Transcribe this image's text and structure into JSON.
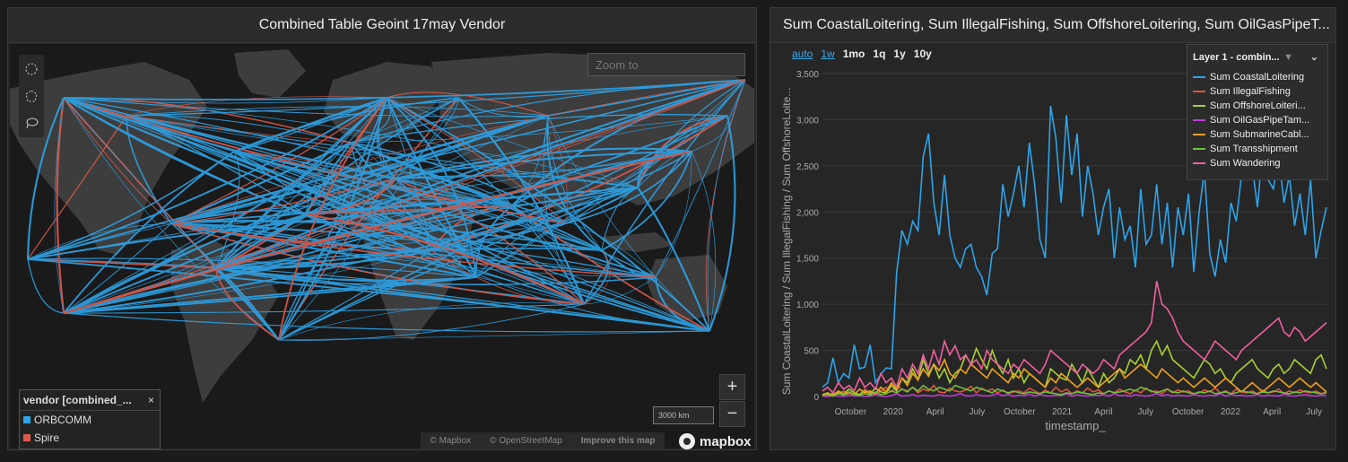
{
  "map_panel": {
    "title": "Combined Table Geoint 17may Vendor",
    "zoom_placeholder": "Zoom to",
    "legend": {
      "title": "vendor [combined_...",
      "close": "×",
      "items": [
        {
          "label": "ORBCOMM",
          "color": "#2ea4e8"
        },
        {
          "label": "Spire",
          "color": "#e05a4b"
        }
      ]
    },
    "scale_label": "3000 km",
    "zoom_in": "+",
    "zoom_out": "−",
    "attribution": [
      "© Mapbox",
      "© OpenStreetMap",
      "Improve this map"
    ],
    "logo": "mapbox",
    "tools": [
      "circle-select-icon",
      "polygon-select-icon",
      "lasso-select-icon"
    ]
  },
  "chart_panel": {
    "title": "Sum CoastalLoitering, Sum IllegalFishing, Sum OffshoreLoitering, Sum OilGasPipeT...",
    "range_buttons": [
      {
        "label": "auto",
        "active": true
      },
      {
        "label": "1w",
        "active": true
      },
      {
        "label": "1mo",
        "active": false
      },
      {
        "label": "1q",
        "active": false
      },
      {
        "label": "1y",
        "active": false
      },
      {
        "label": "10y",
        "active": false
      }
    ],
    "legend_title": "Layer 1 - combin...",
    "series_labels": [
      "Sum CoastalLoitering",
      "Sum IllegalFishing",
      "Sum OffshoreLoiteri...",
      "Sum OilGasPipeTam...",
      "Sum SubmarineCabl...",
      "Sum Transshipment",
      "Sum Wandering"
    ]
  },
  "chart_data": {
    "type": "line",
    "xlabel": "timestamp_",
    "ylabel": "Sum CoastalLoitering / Sum IllegalFishing / Sum OffshoreLoite...",
    "ylim": [
      0,
      3500
    ],
    "yticks": [
      "0",
      "500",
      "1,000",
      "1,500",
      "2,000",
      "2,500",
      "3,000",
      "3,500"
    ],
    "x_start": "2019-08",
    "x_end": "2022-07",
    "xticks": [
      {
        "label": "October",
        "date": "2019-10-01"
      },
      {
        "label": "2020",
        "date": "2020-01-01"
      },
      {
        "label": "April",
        "date": "2020-04-01"
      },
      {
        "label": "July",
        "date": "2020-07-01"
      },
      {
        "label": "October",
        "date": "2020-10-01"
      },
      {
        "label": "2021",
        "date": "2021-01-01"
      },
      {
        "label": "April",
        "date": "2021-04-01"
      },
      {
        "label": "July",
        "date": "2021-07-01"
      },
      {
        "label": "October",
        "date": "2021-10-01"
      },
      {
        "label": "2022",
        "date": "2022-01-01"
      },
      {
        "label": "April",
        "date": "2022-04-01"
      },
      {
        "label": "July",
        "date": "2022-07-01"
      }
    ],
    "grid": true,
    "legend_position": "top-right",
    "series": [
      {
        "name": "Sum CoastalLoitering",
        "color": "#2ea4e8",
        "values": [
          100,
          150,
          420,
          150,
          250,
          200,
          560,
          300,
          320,
          560,
          150,
          240,
          310,
          300,
          1350,
          1800,
          1650,
          1900,
          1800,
          2600,
          2850,
          2100,
          1750,
          2400,
          1750,
          1500,
          1400,
          1600,
          1650,
          1400,
          1300,
          1100,
          1550,
          1600,
          2300,
          1950,
          2200,
          2500,
          2050,
          2750,
          2300,
          1700,
          1500,
          3150,
          2800,
          2100,
          3050,
          2400,
          2850,
          1950,
          2500,
          2200,
          1750,
          2050,
          2250,
          1500,
          2050,
          1700,
          1850,
          1400,
          2250,
          1650,
          1750,
          2300,
          1650,
          2100,
          1400,
          2050,
          1750,
          2200,
          1350,
          2000,
          2450,
          1550,
          1300,
          1700,
          1450,
          2100,
          1900,
          2400,
          2600,
          2500,
          2050,
          2700,
          2350,
          2250,
          2600,
          2100,
          2400,
          1850,
          2200,
          1750,
          2350,
          1500,
          1800,
          2050
        ]
      },
      {
        "name": "Sum IllegalFishing",
        "color": "#e0553b",
        "values": [
          20,
          10,
          40,
          25,
          60,
          15,
          30,
          20,
          80,
          40,
          20,
          60,
          100,
          50,
          120,
          80,
          60,
          100,
          40,
          80,
          60,
          120,
          50,
          40,
          90,
          60,
          50,
          70,
          110,
          40,
          90,
          60,
          80,
          40,
          70,
          30,
          50,
          60,
          40,
          90,
          60,
          30,
          70,
          40,
          100,
          50,
          80,
          30,
          60,
          40,
          90,
          50,
          70,
          30,
          60,
          40,
          80,
          50,
          30,
          70,
          40,
          90,
          50,
          60,
          30,
          80,
          40,
          70,
          50,
          60,
          30,
          40,
          70,
          50,
          90,
          40,
          60,
          30,
          80,
          50,
          40,
          60,
          30,
          70,
          40,
          50,
          80,
          30,
          60,
          40,
          70,
          50,
          40,
          60,
          30,
          50
        ]
      },
      {
        "name": "Sum OffshoreLoitering",
        "color": "#a7d133",
        "values": [
          10,
          30,
          20,
          50,
          30,
          80,
          40,
          20,
          60,
          30,
          90,
          50,
          40,
          120,
          60,
          200,
          150,
          300,
          180,
          400,
          250,
          350,
          200,
          300,
          150,
          250,
          300,
          450,
          350,
          520,
          400,
          300,
          500,
          350,
          250,
          400,
          200,
          300,
          150,
          250,
          200,
          150,
          100,
          300,
          250,
          200,
          180,
          350,
          250,
          150,
          300,
          200,
          100,
          250,
          150,
          200,
          300,
          250,
          400,
          350,
          450,
          300,
          500,
          600,
          450,
          550,
          400,
          350,
          300,
          250,
          200,
          300,
          400,
          350,
          250,
          300,
          200,
          150,
          250,
          300,
          350,
          400,
          300,
          250,
          200,
          300,
          350,
          250,
          300,
          400,
          350,
          300,
          250,
          400,
          450,
          300
        ]
      },
      {
        "name": "Sum OilGasPipeTampering",
        "color": "#c03ad8",
        "values": [
          5,
          0,
          10,
          5,
          0,
          15,
          5,
          10,
          0,
          5,
          20,
          5,
          0,
          10,
          30,
          5,
          10,
          20,
          5,
          15,
          10,
          5,
          20,
          10,
          5,
          15,
          30,
          10,
          5,
          20,
          10,
          5,
          15,
          30,
          10,
          20,
          5,
          15,
          10,
          25,
          5,
          20,
          10,
          5,
          15,
          10,
          30,
          5,
          20,
          10,
          5,
          15,
          10,
          20,
          5,
          30,
          10,
          15,
          5,
          20,
          10,
          5,
          15,
          30,
          10,
          20,
          5,
          15,
          10,
          5,
          20,
          10,
          5,
          15,
          10,
          30,
          5,
          20,
          10,
          15,
          5,
          10,
          20,
          5,
          15,
          10,
          5,
          25,
          10,
          5,
          15,
          20,
          10,
          5,
          15,
          10
        ]
      },
      {
        "name": "Sum SubmarineCableTampering",
        "color": "#f0a21d",
        "values": [
          20,
          40,
          10,
          60,
          30,
          50,
          20,
          80,
          40,
          60,
          30,
          100,
          50,
          150,
          80,
          200,
          120,
          250,
          180,
          300,
          220,
          350,
          280,
          400,
          250,
          200,
          300,
          250,
          350,
          300,
          250,
          200,
          300,
          250,
          200,
          150,
          250,
          200,
          300,
          250,
          200,
          150,
          100,
          200,
          150,
          250,
          200,
          150,
          100,
          150,
          200,
          150,
          100,
          150,
          200,
          250,
          300,
          200,
          250,
          300,
          350,
          300,
          250,
          200,
          300,
          250,
          200,
          150,
          200,
          150,
          100,
          150,
          200,
          150,
          100,
          150,
          200,
          150,
          100,
          50,
          100,
          150,
          100,
          50,
          100,
          150,
          200,
          150,
          100,
          150,
          200,
          150,
          100,
          150,
          100,
          50
        ]
      },
      {
        "name": "Sum Transshipment",
        "color": "#6fbf3c",
        "values": [
          10,
          20,
          5,
          30,
          15,
          40,
          20,
          10,
          30,
          15,
          50,
          20,
          30,
          60,
          40,
          80,
          50,
          100,
          60,
          120,
          80,
          60,
          100,
          80,
          60,
          120,
          100,
          80,
          60,
          100,
          80,
          60,
          40,
          80,
          60,
          40,
          60,
          40,
          30,
          50,
          40,
          30,
          50,
          40,
          30,
          20,
          40,
          30,
          50,
          40,
          30,
          20,
          40,
          30,
          60,
          40,
          50,
          60,
          80,
          60,
          100,
          80,
          60,
          40,
          60,
          80,
          50,
          40,
          60,
          40,
          30,
          50,
          40,
          60,
          30,
          40,
          50,
          30,
          40,
          60,
          50,
          40,
          30,
          50,
          40,
          60,
          50,
          40,
          30,
          50,
          40,
          60,
          50,
          40,
          30,
          40
        ]
      },
      {
        "name": "Sum Wandering",
        "color": "#ef5fa0",
        "values": [
          60,
          100,
          40,
          150,
          80,
          120,
          60,
          200,
          100,
          150,
          80,
          250,
          150,
          200,
          100,
          300,
          200,
          350,
          250,
          450,
          300,
          500,
          350,
          600,
          450,
          550,
          400,
          450,
          350,
          400,
          300,
          500,
          400,
          350,
          300,
          250,
          350,
          300,
          400,
          350,
          300,
          250,
          350,
          500,
          450,
          400,
          350,
          300,
          250,
          350,
          300,
          250,
          300,
          400,
          350,
          300,
          450,
          500,
          550,
          600,
          650,
          700,
          800,
          1250,
          1000,
          950,
          850,
          700,
          600,
          550,
          500,
          450,
          400,
          500,
          600,
          550,
          500,
          450,
          400,
          500,
          550,
          600,
          650,
          700,
          750,
          800,
          850,
          700,
          650,
          750,
          700,
          600,
          650,
          700,
          750,
          800
        ]
      }
    ]
  }
}
